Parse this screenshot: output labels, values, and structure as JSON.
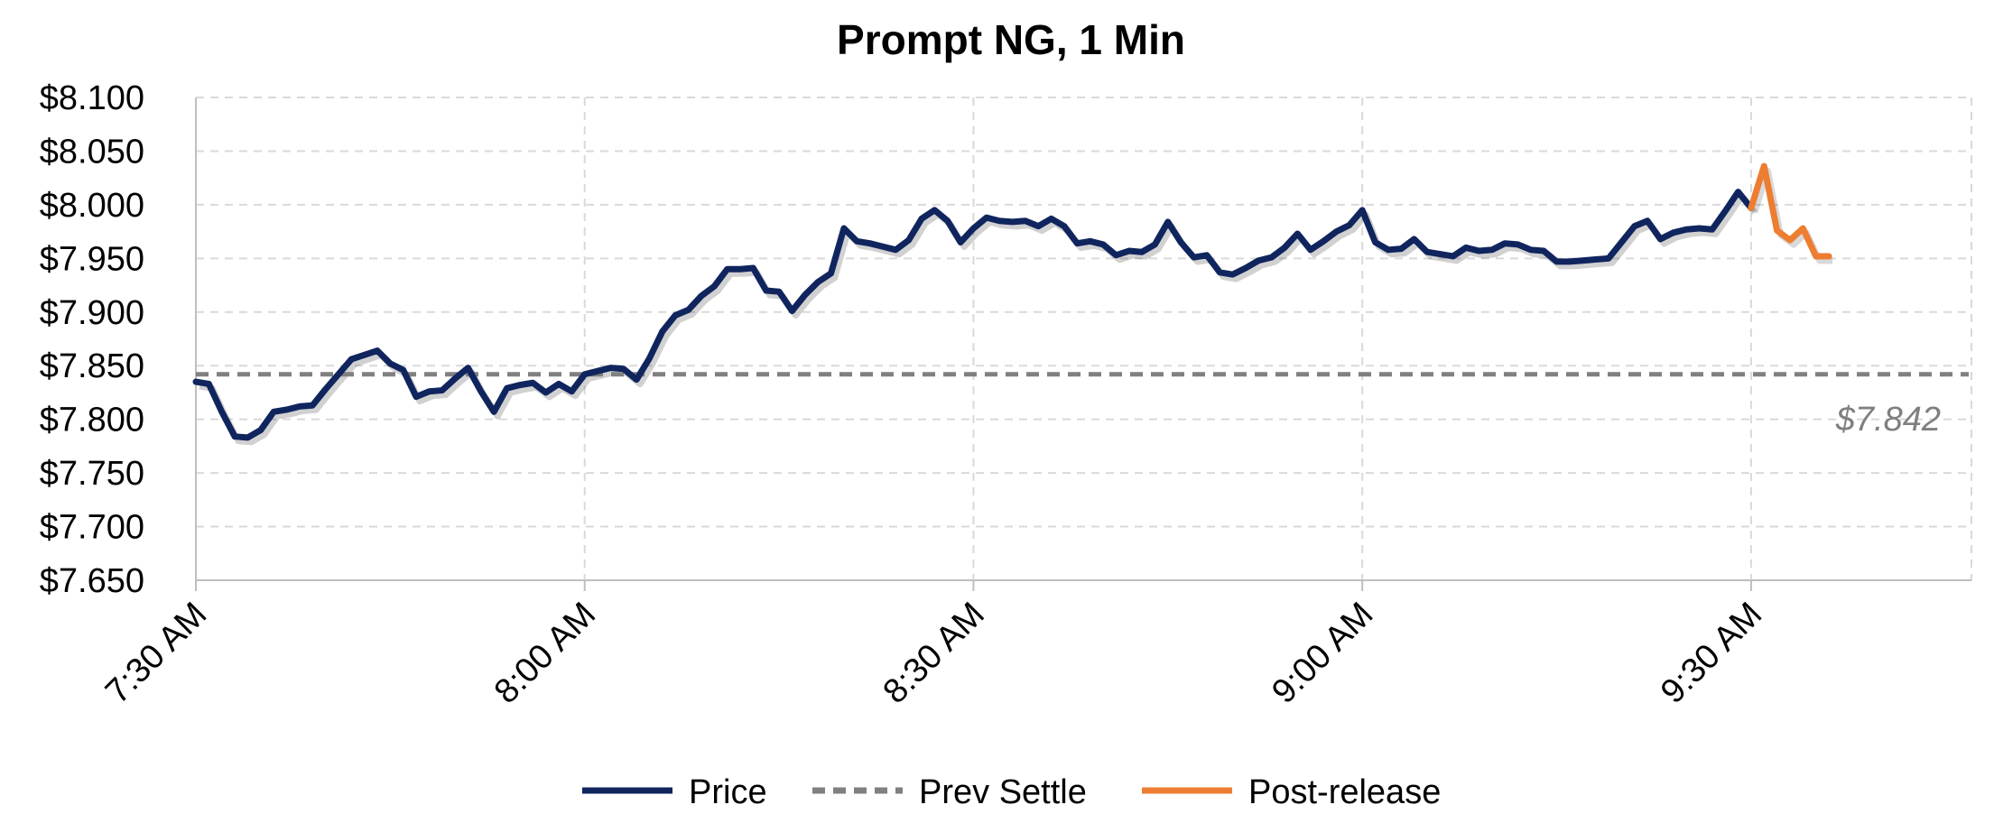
{
  "chart_data": {
    "type": "line",
    "title": "Prompt NG, 1 Min",
    "xlabel": "",
    "ylabel": "",
    "ylim": [
      7.65,
      8.1
    ],
    "y_ticks": [
      "$8.100",
      "$8.050",
      "$8.000",
      "$7.950",
      "$7.900",
      "$7.850",
      "$7.800",
      "$7.750",
      "$7.700",
      "$7.650"
    ],
    "x_ticks": [
      "7:30 AM",
      "8:00 AM",
      "8:30 AM",
      "9:00 AM",
      "9:30 AM"
    ],
    "grid": true,
    "legend_position": "bottom",
    "colors": {
      "price": "#10255e",
      "prev_settle": "#808080",
      "post_release": "#ed7d31"
    },
    "series": [
      {
        "name": "Price",
        "x": [
          0,
          1,
          2,
          3,
          4,
          5,
          6,
          7,
          8,
          9,
          10,
          11,
          12,
          13,
          14,
          15,
          16,
          17,
          18,
          19,
          20,
          21,
          22,
          23,
          24,
          25,
          26,
          27,
          28,
          29,
          30,
          31,
          32,
          33,
          34,
          35,
          36,
          37,
          38,
          39,
          40,
          41,
          42,
          43,
          44,
          45,
          46,
          47,
          48,
          49,
          50,
          51,
          52,
          53,
          54,
          55,
          56,
          57,
          58,
          59,
          60,
          61,
          62,
          63,
          64,
          65,
          66,
          67,
          68,
          69,
          70,
          71,
          72,
          73,
          74,
          75,
          76,
          77,
          78,
          79,
          80,
          81,
          82,
          83,
          84,
          85,
          86,
          87,
          88,
          89,
          90,
          91,
          92,
          93,
          94,
          95,
          96,
          97,
          98,
          99,
          100,
          101,
          102,
          103,
          104,
          105,
          106,
          107,
          108,
          109,
          110,
          111,
          112,
          113,
          114,
          115,
          116,
          117,
          118,
          119,
          120
        ],
        "values": [
          7.835,
          7.833,
          7.807,
          7.784,
          7.783,
          7.79,
          7.807,
          7.809,
          7.812,
          7.813,
          7.828,
          7.842,
          7.856,
          7.86,
          7.864,
          7.852,
          7.846,
          7.821,
          7.826,
          7.827,
          7.838,
          7.848,
          7.826,
          7.807,
          7.829,
          7.832,
          7.834,
          7.825,
          7.833,
          7.826,
          7.842,
          7.845,
          7.848,
          7.847,
          7.837,
          7.857,
          7.882,
          7.897,
          7.902,
          7.915,
          7.924,
          7.94,
          7.94,
          7.941,
          7.92,
          7.919,
          7.901,
          7.916,
          7.928,
          7.936,
          7.978,
          7.966,
          7.964,
          7.961,
          7.958,
          7.967,
          7.987,
          7.995,
          7.985,
          7.965,
          7.978,
          7.988,
          7.985,
          7.984,
          7.985,
          7.98,
          7.987,
          7.98,
          7.964,
          7.966,
          7.963,
          7.953,
          7.957,
          7.956,
          7.963,
          7.984,
          7.965,
          7.951,
          7.953,
          7.937,
          7.935,
          7.941,
          7.948,
          7.951,
          7.96,
          7.973,
          7.958,
          7.966,
          7.975,
          7.981,
          7.995,
          7.965,
          7.958,
          7.959,
          7.968,
          7.956,
          7.954,
          7.952,
          7.96,
          7.957,
          7.958,
          7.964,
          7.963,
          7.958,
          7.957,
          7.947,
          7.947,
          7.948,
          7.949,
          7.95,
          7.965,
          7.98,
          7.985,
          7.968,
          7.974,
          7.977,
          7.978,
          7.977,
          7.994,
          8.012,
          7.997
        ]
      },
      {
        "name": "Prev Settle",
        "x": [
          0,
          137
        ],
        "values": [
          7.842,
          7.842
        ]
      },
      {
        "name": "Post-release",
        "x": [
          120,
          121,
          122,
          123,
          124,
          125,
          126
        ],
        "values": [
          7.997,
          8.036,
          7.976,
          7.967,
          7.978,
          7.952,
          7.952
        ]
      }
    ],
    "annotation": "$7.842"
  }
}
